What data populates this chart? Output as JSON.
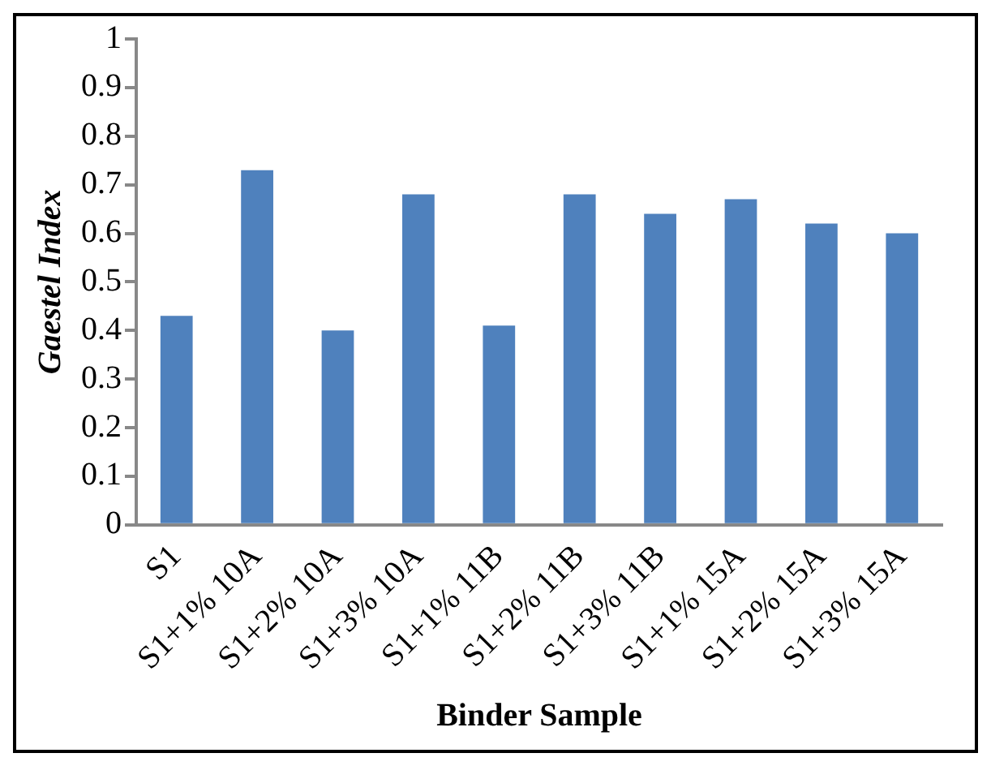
{
  "chart_data": {
    "type": "bar",
    "xlabel": "Binder Sample",
    "ylabel": "Gaestel Index",
    "categories": [
      "S1",
      "S1+1% 10A",
      "S1+2% 10A",
      "S1+3% 10A",
      "S1+1% 11B",
      "S1+2% 11B",
      "S1+3% 11B",
      "S1+1% 15A",
      "S1+2% 15A",
      "S1+3% 15A"
    ],
    "values": [
      0.43,
      0.73,
      0.4,
      0.68,
      0.41,
      0.68,
      0.64,
      0.67,
      0.62,
      0.6
    ],
    "color": "#4f81bd",
    "ylim": [
      0,
      1
    ],
    "yticks": [
      0,
      0.1,
      0.2,
      0.3,
      0.4,
      0.5,
      0.6,
      0.7,
      0.8,
      0.9,
      1
    ],
    "grid": false,
    "legend": false
  }
}
